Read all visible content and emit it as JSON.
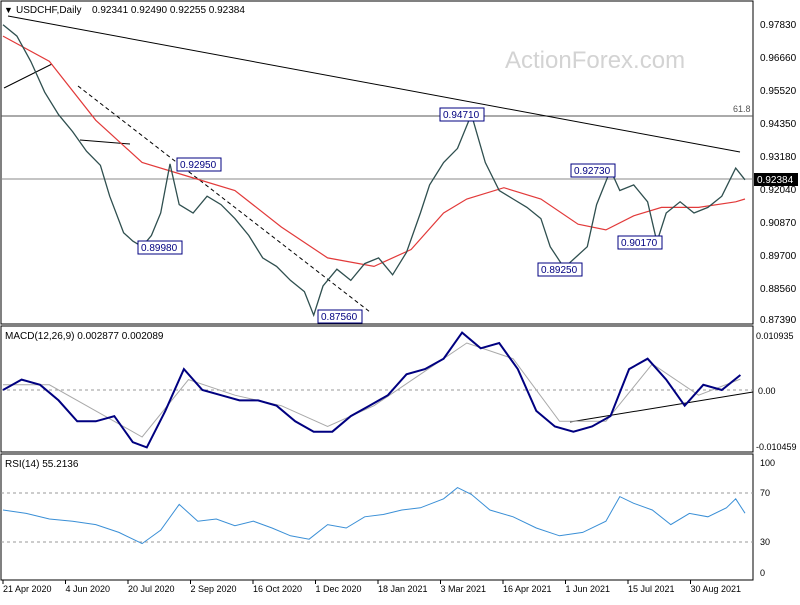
{
  "header": {
    "symbol": "USDCHF,Daily",
    "ohlc": "0.92341 0.92490 0.92255 0.92384"
  },
  "watermark": "ActionForex.com",
  "colors": {
    "price": "#2f4f4f",
    "ma": "#e23a3a",
    "trend": "#000000",
    "macd": "#000080",
    "signal": "#a9a9a9",
    "rsi": "#3a8fd6",
    "label_border": "#000080",
    "label_text": "#000080",
    "grid": "#c8c8c8"
  },
  "price_pane": {
    "y_ticks": [
      "0.97830",
      "0.96660",
      "0.95520",
      "0.94350",
      "0.93180",
      "0.92040",
      "0.90870",
      "0.89700",
      "0.88560",
      "0.87390"
    ],
    "current_price": "0.92384",
    "fib_label": "61.8",
    "level_labels": [
      "0.94710",
      "0.92950",
      "0.92730",
      "0.89980",
      "0.90170",
      "0.89250",
      "0.87560"
    ]
  },
  "macd_pane": {
    "label": "MACD(12,26,9) 0.002877 0.002089",
    "y_ticks": [
      "0.010935",
      "0.00",
      "-0.010459"
    ]
  },
  "rsi_pane": {
    "label": "RSI(14) 55.2136",
    "y_ticks": [
      "100",
      "70",
      "30",
      "0"
    ]
  },
  "x_axis": {
    "ticks": [
      "21 Apr 2020",
      "4 Jun 2020",
      "20 Jul 2020",
      "2 Sep 2020",
      "16 Oct 2020",
      "1 Dec 2020",
      "18 Jan 2021",
      "3 Mar 2021",
      "16 Apr 2021",
      "1 Jun 2021",
      "15 Jul 2021",
      "30 Aug 2021"
    ]
  },
  "chart_data": [
    {
      "type": "line",
      "title": "USDCHF,Daily",
      "x": [
        "21 Apr 2020",
        "4 Jun 2020",
        "20 Jul 2020",
        "2 Sep 2020",
        "16 Oct 2020",
        "1 Dec 2020",
        "18 Jan 2021",
        "3 Mar 2021",
        "16 Apr 2021",
        "1 Jun 2021",
        "15 Jul 2021",
        "30 Aug 2021"
      ],
      "ylim": [
        0.8739,
        0.985
      ],
      "series": [
        {
          "name": "USDCHF",
          "points": [
            [
              0,
              0.979
            ],
            [
              3,
              0.975
            ],
            [
              6,
              0.966
            ],
            [
              9,
              0.955
            ],
            [
              12,
              0.947
            ],
            [
              15,
              0.941
            ],
            [
              18,
              0.934
            ],
            [
              21,
              0.929
            ],
            [
              23,
              0.918
            ],
            [
              26,
              0.905
            ],
            [
              28,
              0.902
            ],
            [
              30,
              0.9
            ],
            [
              32,
              0.904
            ],
            [
              34,
              0.912
            ],
            [
              36,
              0.9295
            ],
            [
              38,
              0.915
            ],
            [
              41,
              0.912
            ],
            [
              44,
              0.918
            ],
            [
              47,
              0.915
            ],
            [
              50,
              0.91
            ],
            [
              53,
              0.904
            ],
            [
              56,
              0.896
            ],
            [
              59,
              0.893
            ],
            [
              62,
              0.888
            ],
            [
              65,
              0.884
            ],
            [
              67,
              0.8756
            ],
            [
              69,
              0.886
            ],
            [
              72,
              0.892
            ],
            [
              75,
              0.888
            ],
            [
              78,
              0.894
            ],
            [
              81,
              0.896
            ],
            [
              84,
              0.89
            ],
            [
              87,
              0.898
            ],
            [
              90,
              0.912
            ],
            [
              92,
              0.922
            ],
            [
              95,
              0.93
            ],
            [
              98,
              0.935
            ],
            [
              101,
              0.9471
            ],
            [
              104,
              0.93
            ],
            [
              107,
              0.92
            ],
            [
              110,
              0.917
            ],
            [
              113,
              0.914
            ],
            [
              116,
              0.91
            ],
            [
              118,
              0.9
            ],
            [
              121,
              0.8925
            ],
            [
              124,
              0.897
            ],
            [
              126,
              0.9
            ],
            [
              128,
              0.915
            ],
            [
              131,
              0.9273
            ],
            [
              133,
              0.92
            ],
            [
              136,
              0.922
            ],
            [
              139,
              0.916
            ],
            [
              141,
              0.9017
            ],
            [
              143,
              0.912
            ],
            [
              146,
              0.916
            ],
            [
              149,
              0.912
            ],
            [
              152,
              0.914
            ],
            [
              155,
              0.918
            ],
            [
              158,
              0.928
            ],
            [
              160,
              0.92384
            ]
          ]
        },
        {
          "name": "MA",
          "points": [
            [
              0,
              0.975
            ],
            [
              10,
              0.966
            ],
            [
              20,
              0.945
            ],
            [
              30,
              0.93
            ],
            [
              40,
              0.925
            ],
            [
              50,
              0.92
            ],
            [
              60,
              0.907
            ],
            [
              70,
              0.896
            ],
            [
              80,
              0.893
            ],
            [
              88,
              0.899
            ],
            [
              95,
              0.912
            ],
            [
              100,
              0.917
            ],
            [
              108,
              0.921
            ],
            [
              116,
              0.917
            ],
            [
              124,
              0.908
            ],
            [
              130,
              0.906
            ],
            [
              136,
              0.911
            ],
            [
              142,
              0.914
            ],
            [
              150,
              0.914
            ],
            [
              158,
              0.916
            ],
            [
              160,
              0.917
            ]
          ]
        }
      ],
      "annotations": [
        "0.94710",
        "0.92950",
        "0.92730",
        "0.89980",
        "0.90170",
        "0.89250",
        "0.87560",
        "61.8"
      ]
    },
    {
      "type": "line",
      "title": "MACD(12,26,9) 0.002877 0.002089",
      "ylim": [
        -0.0115,
        0.0115
      ],
      "series": [
        {
          "name": "MACD",
          "points": [
            [
              0,
              0.0
            ],
            [
              4,
              0.002
            ],
            [
              8,
              0.001
            ],
            [
              12,
              -0.002
            ],
            [
              16,
              -0.006
            ],
            [
              20,
              -0.006
            ],
            [
              24,
              -0.005
            ],
            [
              28,
              -0.01
            ],
            [
              31,
              -0.011
            ],
            [
              35,
              -0.004
            ],
            [
              39,
              0.004
            ],
            [
              43,
              0.0
            ],
            [
              47,
              -0.001
            ],
            [
              51,
              -0.002
            ],
            [
              55,
              -0.002
            ],
            [
              59,
              -0.003
            ],
            [
              63,
              -0.006
            ],
            [
              67,
              -0.008
            ],
            [
              71,
              -0.008
            ],
            [
              75,
              -0.005
            ],
            [
              79,
              -0.003
            ],
            [
              83,
              -0.001
            ],
            [
              87,
              0.003
            ],
            [
              91,
              0.004
            ],
            [
              95,
              0.006
            ],
            [
              99,
              0.011
            ],
            [
              103,
              0.008
            ],
            [
              107,
              0.009
            ],
            [
              111,
              0.004
            ],
            [
              115,
              -0.004
            ],
            [
              119,
              -0.007
            ],
            [
              123,
              -0.008
            ],
            [
              127,
              -0.007
            ],
            [
              131,
              -0.005
            ],
            [
              135,
              0.004
            ],
            [
              139,
              0.006
            ],
            [
              143,
              0.002
            ],
            [
              147,
              -0.003
            ],
            [
              151,
              0.001
            ],
            [
              155,
              0.0
            ],
            [
              159,
              0.002877
            ]
          ]
        },
        {
          "name": "Signal",
          "points": [
            [
              0,
              0.001
            ],
            [
              10,
              0.001
            ],
            [
              20,
              -0.004
            ],
            [
              30,
              -0.009
            ],
            [
              40,
              0.002
            ],
            [
              50,
              -0.001
            ],
            [
              60,
              -0.003
            ],
            [
              70,
              -0.007
            ],
            [
              80,
              -0.003
            ],
            [
              90,
              0.003
            ],
            [
              100,
              0.009
            ],
            [
              110,
              0.006
            ],
            [
              120,
              -0.006
            ],
            [
              130,
              -0.006
            ],
            [
              140,
              0.005
            ],
            [
              150,
              -0.001
            ],
            [
              159,
              0.002089
            ]
          ]
        }
      ]
    },
    {
      "type": "line",
      "title": "RSI(14) 55.2136",
      "ylim": [
        0,
        100
      ],
      "series": [
        {
          "name": "RSI",
          "points": [
            [
              0,
              58
            ],
            [
              5,
              55
            ],
            [
              10,
              50
            ],
            [
              15,
              48
            ],
            [
              20,
              45
            ],
            [
              25,
              38
            ],
            [
              30,
              28
            ],
            [
              34,
              40
            ],
            [
              38,
              63
            ],
            [
              42,
              48
            ],
            [
              46,
              50
            ],
            [
              50,
              44
            ],
            [
              54,
              48
            ],
            [
              58,
              42
            ],
            [
              62,
              35
            ],
            [
              66,
              32
            ],
            [
              70,
              45
            ],
            [
              74,
              42
            ],
            [
              78,
              52
            ],
            [
              82,
              54
            ],
            [
              86,
              58
            ],
            [
              90,
              60
            ],
            [
              95,
              68
            ],
            [
              98,
              78
            ],
            [
              101,
              72
            ],
            [
              105,
              58
            ],
            [
              110,
              52
            ],
            [
              115,
              42
            ],
            [
              120,
              35
            ],
            [
              125,
              38
            ],
            [
              130,
              48
            ],
            [
              133,
              70
            ],
            [
              136,
              64
            ],
            [
              140,
              58
            ],
            [
              144,
              45
            ],
            [
              148,
              55
            ],
            [
              152,
              52
            ],
            [
              156,
              60
            ],
            [
              158,
              68
            ],
            [
              160,
              55.2
            ]
          ]
        }
      ]
    }
  ]
}
